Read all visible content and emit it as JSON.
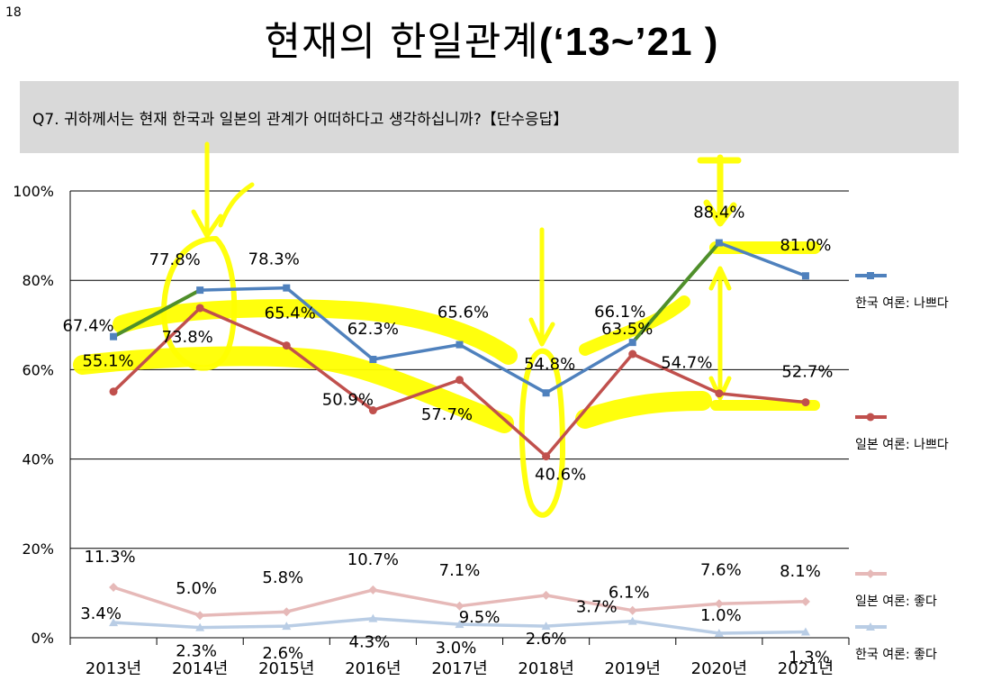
{
  "page_number": "18",
  "title": {
    "main": "현재의 한일관계",
    "suffix": "(‘13~’21 )"
  },
  "question": "Q7. 귀하께서는 현재 한국과 일본의 관계가 어떠하다고 생각하십니까?【단수응답】",
  "colors": {
    "korea_bad": "#4f81bd",
    "japan_bad": "#c0504d",
    "japan_good": "#e6b9b8",
    "korea_good": "#b9cde5",
    "highlight_yellow": "#ffff00",
    "green_segment": "#4f8f2a",
    "grid": "#000000",
    "question_bg": "#d9d9d9"
  },
  "chart_data": {
    "type": "line",
    "categories": [
      "2013년",
      "2014년",
      "2015년",
      "2016년",
      "2017년",
      "2018년",
      "2019년",
      "2020년",
      "2021년"
    ],
    "ylim": [
      0,
      100
    ],
    "yticks": [
      "0%",
      "20%",
      "40%",
      "60%",
      "80%",
      "100%"
    ],
    "grid": true,
    "legend_position": "right",
    "series": [
      {
        "name": "한국 여론: 나쁘다",
        "values": [
          67.4,
          77.8,
          78.3,
          62.3,
          65.6,
          54.8,
          66.1,
          88.4,
          81.0
        ],
        "labels": [
          "67.4%",
          "77.8%",
          "78.3%",
          "62.3%",
          "65.6%",
          "54.8%",
          "66.1%",
          "88.4%",
          "81.0%"
        ],
        "marker": "square"
      },
      {
        "name": "일본 여론: 나쁘다",
        "values": [
          55.1,
          73.8,
          65.4,
          50.9,
          57.7,
          40.6,
          63.5,
          54.7,
          52.7
        ],
        "labels": [
          "55.1%",
          "73.8%",
          "65.4%",
          "50.9%",
          "57.7%",
          "40.6%",
          "63.5%",
          "54.7%",
          "52.7%"
        ],
        "marker": "circle"
      },
      {
        "name": "일본 여론: 좋다",
        "values": [
          11.3,
          5.0,
          5.8,
          10.7,
          7.1,
          9.5,
          6.1,
          7.6,
          8.1
        ],
        "labels": [
          "11.3%",
          "5.0%",
          "5.8%",
          "10.7%",
          "7.1%",
          "9.5%",
          "6.1%",
          "7.6%",
          "8.1%"
        ],
        "marker": "diamond"
      },
      {
        "name": "한국 여론: 좋다",
        "values": [
          3.4,
          2.3,
          2.6,
          4.3,
          3.0,
          2.6,
          3.7,
          1.0,
          1.3
        ],
        "labels": [
          "3.4%",
          "2.3%",
          "2.6%",
          "4.3%",
          "3.0%",
          "2.6%",
          "3.7%",
          "1.0%",
          "1.3%"
        ],
        "marker": "triangle"
      }
    ]
  }
}
